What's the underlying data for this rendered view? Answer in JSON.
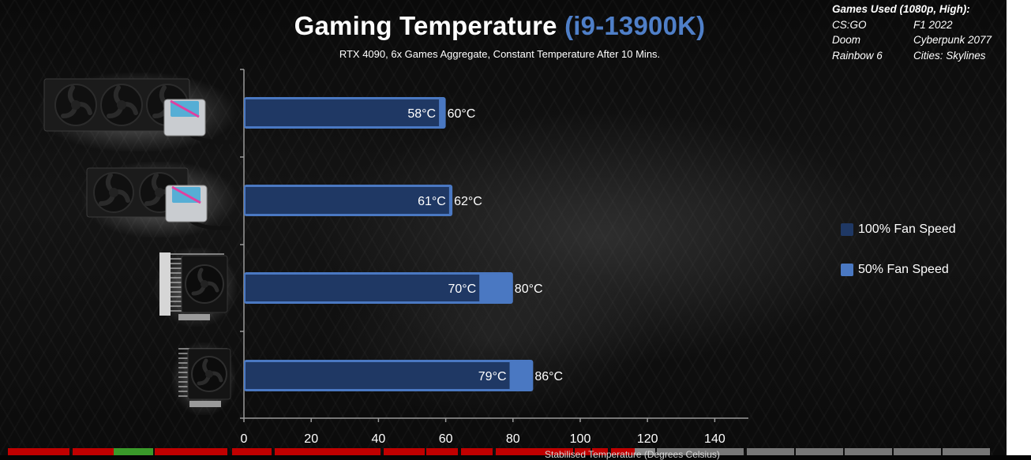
{
  "chart_data": {
    "type": "bar",
    "orientation": "horizontal",
    "title": "Gaming Temperature",
    "title_accent": "(i9-13900K)",
    "subtitle": "RTX 4090, 6x Games Aggregate, Constant Temperature After 10 Mins.",
    "xlabel": "Stabilised Temperature (Degrees Celsius)",
    "xlim": [
      0,
      150
    ],
    "xticks": [
      0,
      20,
      40,
      60,
      80,
      100,
      120,
      140
    ],
    "categories": [
      "",
      "",
      "",
      ""
    ],
    "series": [
      {
        "name": "100% Fan Speed",
        "values": [
          58,
          61,
          70,
          79
        ],
        "labels": [
          "58°C",
          "61°C",
          "70°C",
          "79°C"
        ]
      },
      {
        "name": "50% Fan Speed",
        "values": [
          60,
          62,
          80,
          86
        ],
        "labels": [
          "60°C",
          "62°C",
          "80°C",
          "86°C"
        ]
      }
    ],
    "colors": {
      "fan_100": "#1f3864",
      "fan_50": "#4a78c2",
      "title_accent": "#4f7fc8"
    },
    "legend_position": "right",
    "grid": false
  },
  "games_used": {
    "heading": "Games Used (1080p, High):",
    "items": [
      "CS:GO",
      "F1 2022",
      "Doom",
      "Cyberpunk 2077",
      "Rainbow 6",
      "Cities: Skylines"
    ]
  },
  "coolers": [
    {
      "icon": "aio-360-cooler-icon"
    },
    {
      "icon": "aio-240-cooler-icon"
    },
    {
      "icon": "dual-tower-air-cooler-icon"
    },
    {
      "icon": "single-tower-air-cooler-icon"
    }
  ]
}
